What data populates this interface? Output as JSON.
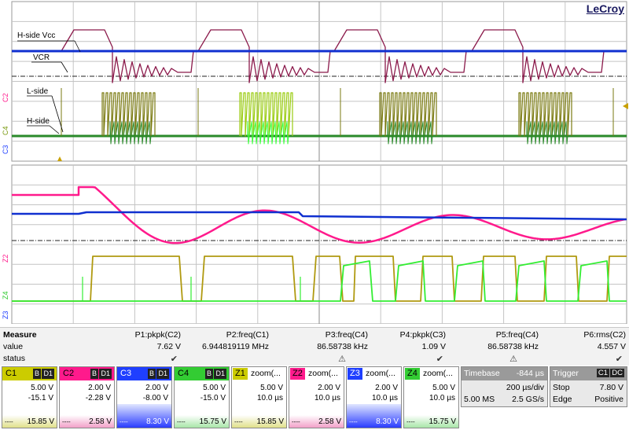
{
  "brand": "LeCroy",
  "trace_labels": {
    "hside_vcc": "H-side Vcc",
    "vcr": "VCR",
    "lside": "L-side",
    "hside": "H-side"
  },
  "grid_markers": {
    "c2": "C2",
    "c4": "C4",
    "c3": "C3",
    "z2": "Z2",
    "z4": "Z4",
    "z3": "Z3"
  },
  "colors": {
    "c1": "#cccc00",
    "c2": "#ff1a8c",
    "c3": "#1f3fff",
    "c4": "#33cc33",
    "vcc_trace": "#8b1a4b",
    "ch3_trace": "#1030d0",
    "l_side_trace": "#7a7a10",
    "h_side_trace": "#2a8a2a"
  },
  "measure": {
    "header": {
      "label": "Measure",
      "p1": "P1:pkpk(C2)",
      "p2": "P2:freq(C1)",
      "p3": "P3:freq(C4)",
      "p4": "P4:pkpk(C3)",
      "p5": "P5:freq(C4)",
      "p6": "P6:rms(C2)"
    },
    "value": {
      "label": "value",
      "p1": "7.62 V",
      "p2": "6.944819119 MHz",
      "p3": "86.58738 kHz",
      "p4": "1.09 V",
      "p5": "86.58738 kHz",
      "p6": "4.557 V"
    },
    "status": {
      "label": "status",
      "p2": "✔",
      "p3": "⚠",
      "p4": "✔",
      "p5": "⚠",
      "p6": "✔"
    }
  },
  "channels": [
    {
      "id": "C1",
      "bw": "B",
      "coupling": "D1",
      "vdiv": "5.00 V",
      "offset": "-15.1 V",
      "foot": "15.85 V",
      "color": "#cccc00"
    },
    {
      "id": "C2",
      "bw": "B",
      "coupling": "D1",
      "vdiv": "2.00 V",
      "offset": "-2.28 V",
      "foot": "2.58 V",
      "color": "#ff1a8c"
    },
    {
      "id": "C3",
      "bw": "B",
      "coupling": "D1",
      "vdiv": "2.00 V",
      "offset": "-8.00 V",
      "foot": "8.30 V",
      "color": "#1f3fff"
    },
    {
      "id": "C4",
      "bw": "B",
      "coupling": "D1",
      "vdiv": "5.00 V",
      "offset": "-15.0 V",
      "foot": "15.75 V",
      "color": "#33cc33"
    }
  ],
  "zooms": [
    {
      "id": "Z1",
      "name": "zoom(...",
      "vdiv": "5.00 V",
      "tdiv": "10.0 µs",
      "foot": "15.85 V",
      "color": "#cccc00"
    },
    {
      "id": "Z2",
      "name": "zoom(...",
      "vdiv": "2.00 V",
      "tdiv": "10.0 µs",
      "foot": "2.58 V",
      "color": "#ff1a8c"
    },
    {
      "id": "Z3",
      "name": "zoom(...",
      "vdiv": "2.00 V",
      "tdiv": "10.0 µs",
      "foot": "8.30 V",
      "color": "#1f3fff"
    },
    {
      "id": "Z4",
      "name": "zoom(...",
      "vdiv": "5.00 V",
      "tdiv": "10.0 µs",
      "foot": "15.75 V",
      "color": "#33cc33"
    }
  ],
  "timebase": {
    "title": "Timebase",
    "delay": "-844 µs",
    "tdiv": "200 µs/div",
    "samples": "5.00 MS",
    "rate": "2.5 GS/s"
  },
  "trigger": {
    "title": "Trigger",
    "src": "C1",
    "coupling": "DC",
    "mode": "Stop",
    "level": "7.80 V",
    "type": "Edge",
    "slope": "Positive"
  }
}
